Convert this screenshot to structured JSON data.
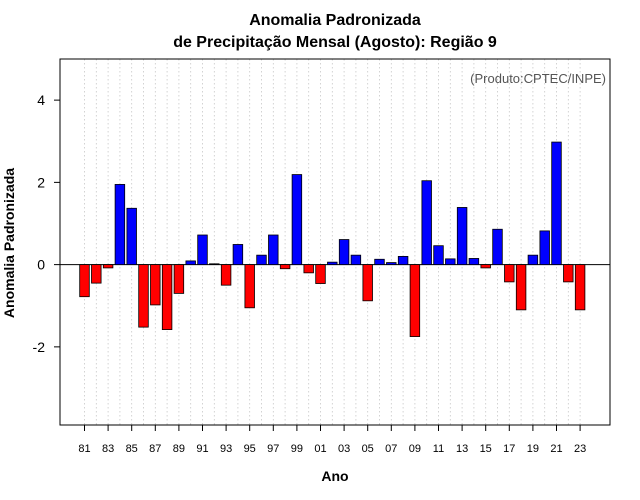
{
  "chart_data": {
    "type": "bar",
    "title_line1": "Anomalia Padronizada",
    "title_line2": "de Precipitação Mensal (Agosto): Região 9",
    "xlabel": "Ano",
    "ylabel": "Anomalia Padronizada",
    "credit": "(Produto:CPTEC/INPE)",
    "ylim": [
      -3.9,
      5.0
    ],
    "yticks": [
      -2,
      0,
      2,
      4
    ],
    "ytick_labels": [
      "-2",
      "0",
      "2",
      "4"
    ],
    "grid": "vertical dotted",
    "colors": {
      "positive": "#0000ff",
      "negative": "#ff0000",
      "axis": "#000000",
      "grid": "#c8c8c8"
    },
    "categories": [
      "81",
      "82",
      "83",
      "84",
      "85",
      "86",
      "87",
      "88",
      "89",
      "90",
      "91",
      "92",
      "93",
      "94",
      "95",
      "96",
      "97",
      "98",
      "99",
      "00",
      "01",
      "02",
      "03",
      "04",
      "05",
      "06",
      "07",
      "08",
      "09",
      "10",
      "11",
      "12",
      "13",
      "14",
      "15",
      "16",
      "17",
      "18",
      "19",
      "20",
      "21",
      "22",
      "23"
    ],
    "tick_labels": [
      "81",
      "83",
      "85",
      "87",
      "89",
      "91",
      "93",
      "95",
      "97",
      "99",
      "01",
      "03",
      "05",
      "07",
      "09",
      "11",
      "13",
      "15",
      "17",
      "19",
      "21",
      "23"
    ],
    "values": [
      -0.78,
      -0.45,
      -0.08,
      1.95,
      1.37,
      -1.52,
      -0.98,
      -1.58,
      -0.7,
      0.09,
      0.72,
      0.02,
      -0.5,
      0.49,
      -1.05,
      0.23,
      0.72,
      -0.1,
      2.19,
      -0.2,
      -0.46,
      0.06,
      0.61,
      0.23,
      -0.88,
      0.13,
      0.05,
      0.2,
      -1.75,
      2.04,
      0.46,
      0.14,
      1.39,
      0.15,
      -0.08,
      0.86,
      -0.42,
      -1.1,
      0.23,
      0.82,
      2.98,
      -0.42,
      -1.1
    ]
  }
}
